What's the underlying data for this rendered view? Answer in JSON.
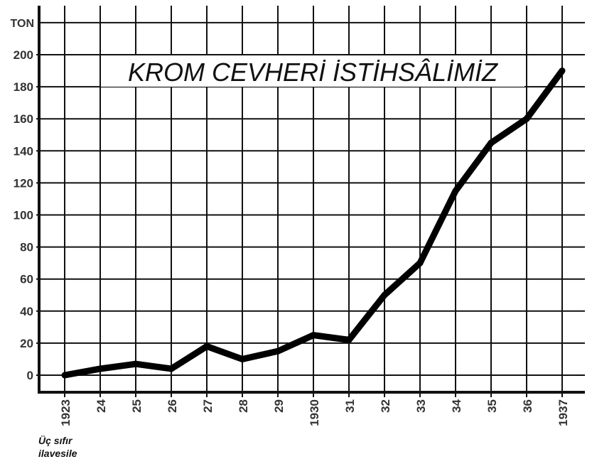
{
  "chart_data": {
    "type": "line",
    "title": "KROM CEVHERİ İSTİHSÂLİMİZ",
    "ylabel": "TON",
    "note_lines": [
      "Üç sıfır",
      "ilavesile"
    ],
    "x_tick_labels": [
      "1923",
      "24",
      "25",
      "26",
      "27",
      "28",
      "29",
      "1930",
      "31",
      "32",
      "33",
      "34",
      "35",
      "36",
      "1937"
    ],
    "y_ticks": [
      0,
      20,
      40,
      60,
      80,
      100,
      120,
      140,
      160,
      180,
      200
    ],
    "ylim": [
      0,
      220
    ],
    "grid": true,
    "x": [
      1923,
      1924,
      1925,
      1926,
      1927,
      1928,
      1929,
      1930,
      1931,
      1932,
      1933,
      1934,
      1935,
      1936,
      1937
    ],
    "values": [
      0,
      4,
      7,
      4,
      18,
      10,
      15,
      25,
      22,
      50,
      70,
      115,
      145,
      160,
      190
    ],
    "line_color": "#000000"
  }
}
